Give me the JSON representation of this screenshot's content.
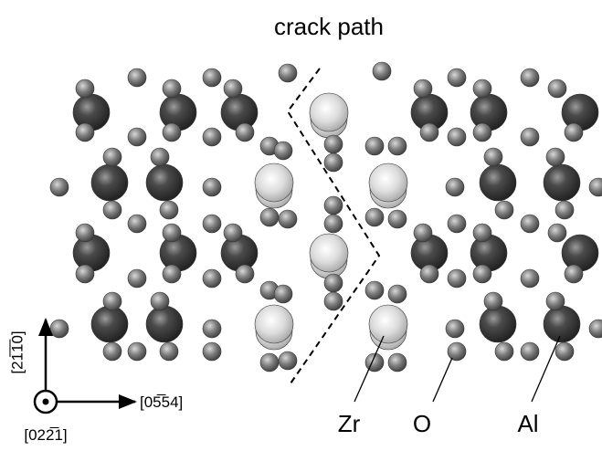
{
  "labels": {
    "crack_path": "crack path",
    "zr": "Zr",
    "o": "O",
    "al": "Al"
  },
  "axes": {
    "vertical": "[21̅1̅0]",
    "horizontal": "[05̅54]",
    "normal": "[022̅1]"
  }
}
